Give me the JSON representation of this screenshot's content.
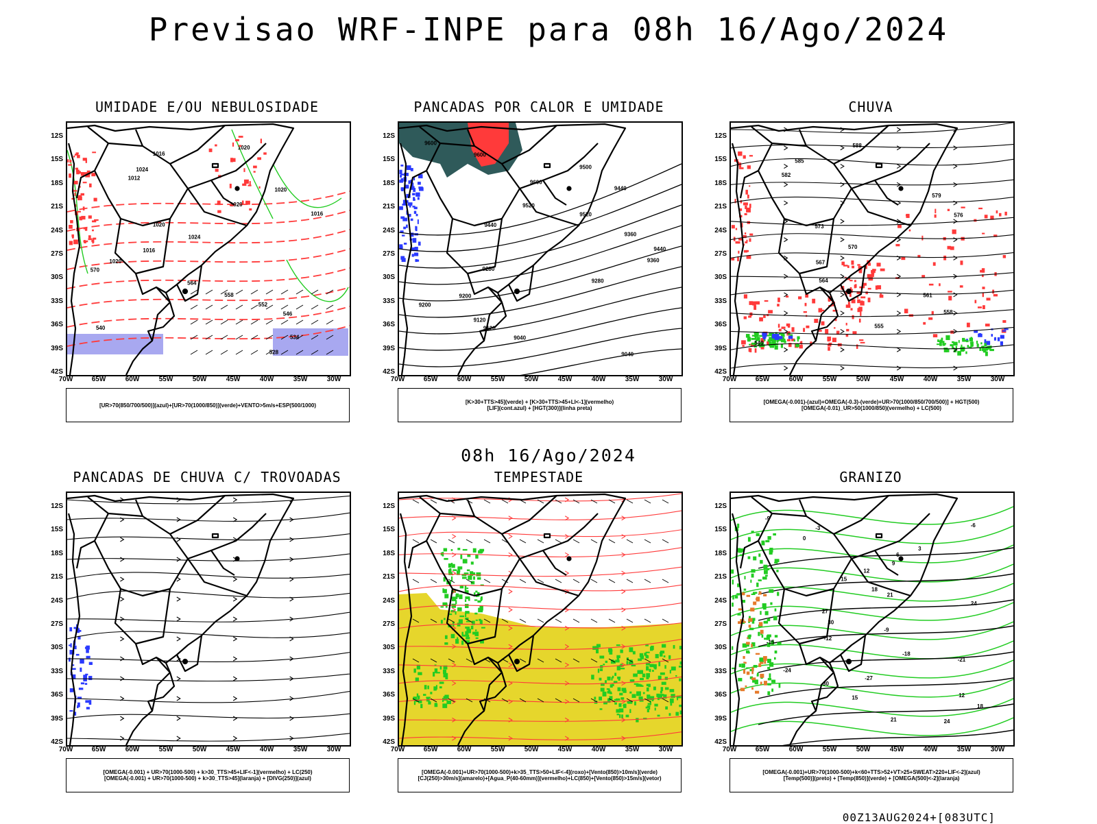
{
  "title": "Previsao WRF-INPE  para 08h 16/Ago/2024",
  "mid_title": "08h 16/Ago/2024",
  "footer": "00Z13AUG2024+[083UTC]",
  "lat_labels": [
    "12S",
    "15S",
    "18S",
    "21S",
    "24S",
    "27S",
    "30S",
    "33S",
    "36S",
    "39S",
    "42S"
  ],
  "lon_labels": [
    "70W",
    "65W",
    "60W",
    "55W",
    "50W",
    "45W",
    "40W",
    "35W",
    "30W"
  ],
  "colors": {
    "red": "#ff3a3a",
    "green": "#22cc22",
    "blue": "#2a3aff",
    "lavender": "#a8a8f0",
    "yellow": "#e6d62c",
    "darkteal": "#2f5a5a"
  },
  "panels": [
    {
      "key": "p1",
      "title": "UMIDADE E/OU NEBULOSIDADE",
      "legend": [
        "[UR>70(850/700/500)](azul)+[UR>70(1000/850)](verde)+VENTO>5m/s+ESP(500/1000)"
      ],
      "contour_labels": [
        "1020",
        "1016",
        "1024",
        "1012",
        "1020",
        "1020",
        "1016",
        "1020",
        "1024",
        "1016",
        "1020",
        "570",
        "564",
        "558",
        "552",
        "546",
        "540",
        "534",
        "528"
      ]
    },
    {
      "key": "p2",
      "title": "PANCADAS POR CALOR E UMIDADE",
      "legend": [
        "[K>30+TTS>45](verde) + [K>30+TTS>45+LI<-1](vermelho)",
        "[LIF](cont.azul) + [HGT(300)](linha preta)"
      ],
      "contour_labels": [
        "9600",
        "9600",
        "9500",
        "9600",
        "9440",
        "9520",
        "9520",
        "9440",
        "9360",
        "9440",
        "9360",
        "9280",
        "9280",
        "9200",
        "9200",
        "9120",
        "9120",
        "9040",
        "9040"
      ]
    },
    {
      "key": "p3",
      "title": "CHUVA",
      "legend": [
        "[OMEGA(-0.001)-(azul)+OMEGA(-0.3)-(verde)+UR>70(1000/850/700/500)] + HGT(500)",
        "[OMEGA(-0.01)_UR>50(1000/850)(vermelho) + LC(500)"
      ],
      "contour_labels": [
        "588",
        "585",
        "582",
        "579",
        "576",
        "573",
        "570",
        "567",
        "564",
        "561",
        "558",
        "555",
        "549"
      ]
    },
    {
      "key": "p4",
      "title": "PANCADAS DE CHUVA C/ TROVOADAS",
      "legend": [
        "[OMEGA(-0.001) + UR>70(1000-500) + k>30_TTS>45+LIF<-1](vermelho) + LC(250)",
        "[OMEGA(-0.001) + UR>70(1000-500) + k>30_TTS>45](laranja) + [DIVG(250)](azul)"
      ],
      "contour_labels": []
    },
    {
      "key": "p5",
      "title": "TEMPESTADE",
      "legend": [
        "[OMEGA(-0.001)+UR>70(1000-500)+k>35_TTS>50+LIF<-4](roxo)+[Vento(850)>10m/s](verde)",
        "[CJ(250)>30m/s](amarelo)+[Agua_P(40-60mm)](vermelho)+LC(850)+[Vento(850)>15m/s](vetor)"
      ],
      "contour_labels": []
    },
    {
      "key": "p6",
      "title": "GRANIZO",
      "legend": [
        "[OMEGA(-0.001)+UR>70(1000-500)+k<60+TTS>52+VT>25+SWEAT>220+LIF<-2](azul)",
        "[Temp(500)](preto) + [Temp(850)](verde) + [OMEGA(500)<-2](laranja)"
      ],
      "contour_labels": [
        "-9",
        "-6",
        "-3",
        "0",
        "3",
        "6",
        "9",
        "12",
        "15",
        "18",
        "21",
        "24",
        "27",
        "30",
        "-9",
        "-12",
        "-15",
        "-18",
        "-21",
        "-24",
        "-27",
        "-30",
        "12",
        "15",
        "18",
        "21",
        "24"
      ]
    }
  ]
}
